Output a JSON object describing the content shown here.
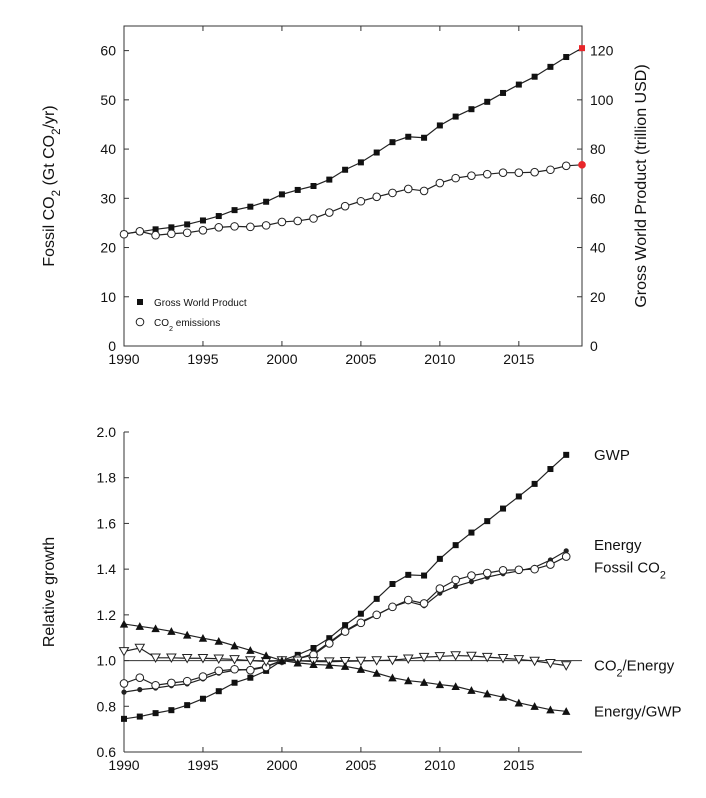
{
  "chart_data": [
    {
      "type": "line",
      "ylabel_left": "Fossil CO₂ (Gt CO₂/yr)",
      "ylabel_right": "Gross World Product (trillion USD)",
      "xlim": [
        1990,
        2019
      ],
      "ylim_left": [
        0,
        65
      ],
      "ylim_right": [
        0,
        130
      ],
      "x_ticks": [
        "1990",
        "1995",
        "2000",
        "2005",
        "2010",
        "2015"
      ],
      "y_ticks_left": [
        "0",
        "10",
        "20",
        "30",
        "40",
        "50",
        "60"
      ],
      "y_ticks_right": [
        "0",
        "20",
        "40",
        "60",
        "80",
        "100",
        "120"
      ],
      "legend": [
        {
          "label": "Gross World Product",
          "marker": "filled-square"
        },
        {
          "label": "CO₂ emissions",
          "marker": "open-circle"
        }
      ],
      "legend_placement": "bottom-left",
      "highlight_color": "#e8262a",
      "x": [
        1990,
        1991,
        1992,
        1993,
        1994,
        1995,
        1996,
        1997,
        1998,
        1999,
        2000,
        2001,
        2002,
        2003,
        2004,
        2005,
        2006,
        2007,
        2008,
        2009,
        2010,
        2011,
        2012,
        2013,
        2014,
        2015,
        2016,
        2017,
        2018,
        2019
      ],
      "series": [
        {
          "name": "Gross World Product",
          "axis": "right",
          "marker": "filled-square",
          "values": [
            45.6,
            46.4,
            47.4,
            48.2,
            49.4,
            51.0,
            52.8,
            55.2,
            56.6,
            58.6,
            61.6,
            63.4,
            65.0,
            67.6,
            71.6,
            74.6,
            78.6,
            82.8,
            85.0,
            84.6,
            89.6,
            93.2,
            96.2,
            99.2,
            102.8,
            106.2,
            109.4,
            113.4,
            117.4,
            121.0
          ]
        },
        {
          "name": "CO₂ emissions",
          "axis": "left",
          "marker": "open-circle",
          "values": [
            22.7,
            23.3,
            22.5,
            22.8,
            23.0,
            23.5,
            24.1,
            24.3,
            24.2,
            24.5,
            25.2,
            25.4,
            25.9,
            27.1,
            28.4,
            29.4,
            30.3,
            31.1,
            31.9,
            31.5,
            33.1,
            34.1,
            34.6,
            34.9,
            35.2,
            35.2,
            35.3,
            35.8,
            36.6,
            36.8
          ]
        }
      ]
    },
    {
      "type": "line",
      "ylabel": "Relative growth",
      "xlim": [
        1990,
        2019
      ],
      "ylim": [
        0.6,
        2.0
      ],
      "x_ticks": [
        "1990",
        "1995",
        "2000",
        "2005",
        "2010",
        "2015"
      ],
      "y_ticks": [
        "0.6",
        "0.8",
        "1.0",
        "1.2",
        "1.4",
        "1.6",
        "1.8",
        "2.0"
      ],
      "reference_line": 1.0,
      "x": [
        1990,
        1991,
        1992,
        1993,
        1994,
        1995,
        1996,
        1997,
        1998,
        1999,
        2000,
        2001,
        2002,
        2003,
        2004,
        2005,
        2006,
        2007,
        2008,
        2009,
        2010,
        2011,
        2012,
        2013,
        2014,
        2015,
        2016,
        2017,
        2018
      ],
      "series": [
        {
          "name": "GWP",
          "marker": "filled-square",
          "values": [
            0.745,
            0.755,
            0.77,
            0.783,
            0.805,
            0.833,
            0.866,
            0.903,
            0.925,
            0.955,
            1.0,
            1.025,
            1.055,
            1.098,
            1.155,
            1.205,
            1.27,
            1.335,
            1.375,
            1.372,
            1.445,
            1.505,
            1.56,
            1.61,
            1.665,
            1.718,
            1.773,
            1.838,
            1.9
          ]
        },
        {
          "name": "Energy",
          "marker": "small-dot",
          "values": [
            0.862,
            0.873,
            0.88,
            0.89,
            0.898,
            0.92,
            0.945,
            0.957,
            0.962,
            0.975,
            1.0,
            1.008,
            1.03,
            1.08,
            1.13,
            1.17,
            1.2,
            1.235,
            1.258,
            1.24,
            1.295,
            1.325,
            1.345,
            1.365,
            1.38,
            1.392,
            1.408,
            1.44,
            1.48
          ]
        },
        {
          "name": "Fossil CO₂",
          "marker": "open-circle",
          "values": [
            0.9,
            0.925,
            0.892,
            0.902,
            0.91,
            0.93,
            0.955,
            0.962,
            0.958,
            0.972,
            1.0,
            1.008,
            1.025,
            1.075,
            1.127,
            1.165,
            1.2,
            1.235,
            1.265,
            1.25,
            1.315,
            1.353,
            1.372,
            1.383,
            1.395,
            1.397,
            1.4,
            1.42,
            1.455
          ]
        },
        {
          "name": "CO₂/Energy",
          "marker": "open-triangle-down",
          "values": [
            1.04,
            1.055,
            1.012,
            1.012,
            1.01,
            1.01,
            1.008,
            1.005,
            1.0,
            0.996,
            1.0,
            0.999,
            0.996,
            0.995,
            0.997,
            0.998,
            1.0,
            1.002,
            1.008,
            1.015,
            1.018,
            1.022,
            1.02,
            1.015,
            1.01,
            1.005,
            0.998,
            0.988,
            0.978
          ]
        },
        {
          "name": "Energy/GWP",
          "marker": "filled-triangle-up",
          "values": [
            1.16,
            1.15,
            1.14,
            1.128,
            1.112,
            1.098,
            1.085,
            1.065,
            1.045,
            1.022,
            1.0,
            0.99,
            0.983,
            0.98,
            0.975,
            0.962,
            0.945,
            0.925,
            0.912,
            0.905,
            0.895,
            0.887,
            0.87,
            0.855,
            0.84,
            0.815,
            0.8,
            0.785,
            0.778
          ]
        }
      ],
      "series_labels": [
        {
          "text": "GWP",
          "anchor": 1.9
        },
        {
          "text": "Energy",
          "anchor": 1.48
        },
        {
          "text": "Fossil CO₂",
          "anchor": 1.45
        },
        {
          "text": "CO₂/Energy",
          "anchor": 0.978
        },
        {
          "text": "Energy/GWP",
          "anchor": 0.778
        }
      ]
    }
  ]
}
